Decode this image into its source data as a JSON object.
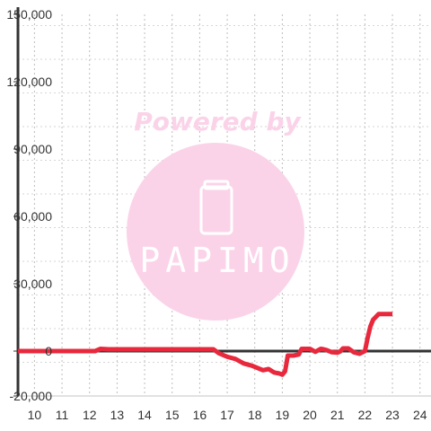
{
  "watermark": {
    "tagline": "Powered by",
    "brand": "PAPIMO",
    "color": "#fbd3e9"
  },
  "chart_data": {
    "type": "line",
    "title": "",
    "xlabel": "",
    "ylabel": "",
    "xlim": [
      9.4,
      24.4
    ],
    "ylim": [
      -20000,
      150000
    ],
    "x_ticks": [
      10,
      11,
      12,
      13,
      14,
      15,
      16,
      17,
      18,
      19,
      20,
      21,
      22,
      23,
      24
    ],
    "y_ticks": [
      -20000,
      0,
      30000,
      60000,
      90000,
      120000,
      150000
    ],
    "y_tick_labels": [
      "-20,000",
      "0",
      "30,000",
      "60,000",
      "90,000",
      "120,000",
      "150,000"
    ],
    "grid": true,
    "line_color": "#e8283c",
    "series": [
      {
        "x": [
          9.4,
          12.0,
          12.2,
          12.4,
          12.7,
          16.5,
          16.7,
          17.0,
          17.3,
          17.6,
          17.9,
          18.1,
          18.3,
          18.5,
          18.7,
          18.9,
          19.0,
          19.1,
          19.2,
          19.4,
          19.6,
          19.7,
          19.8,
          20.0,
          20.2,
          20.4,
          20.5,
          20.6,
          20.8,
          21.0,
          21.1,
          21.2,
          21.4,
          21.6,
          21.8,
          21.9,
          22.0,
          22.1,
          22.2,
          22.3,
          22.5,
          22.8,
          23.0
        ],
        "y": [
          0,
          0,
          0,
          1000,
          800,
          800,
          -1000,
          -2500,
          -3500,
          -5500,
          -6500,
          -7500,
          -8500,
          -8000,
          -9500,
          -10000,
          -10500,
          -9000,
          -2000,
          -2000,
          -1500,
          1000,
          1000,
          1000,
          -300,
          1000,
          800,
          500,
          -500,
          -700,
          -200,
          1200,
          1200,
          -500,
          -1200,
          -600,
          0,
          6000,
          11000,
          14000,
          16500,
          16500,
          16500
        ]
      }
    ]
  }
}
